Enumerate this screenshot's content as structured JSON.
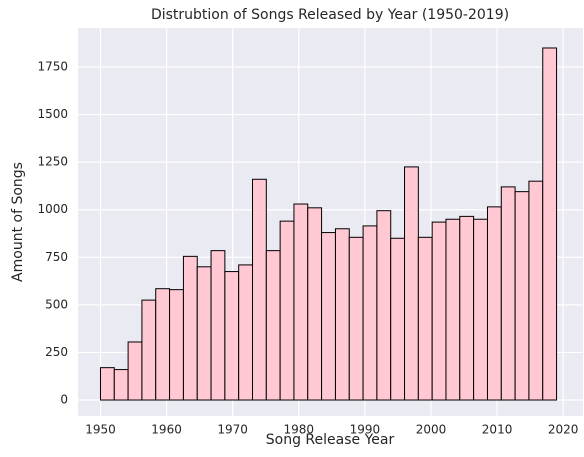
{
  "chart_data": {
    "type": "histogram",
    "title": "Distrubtion of Songs Released by Year (1950-2019)",
    "x_label": "Song Release Year",
    "y_label": "Amount of Songs",
    "bins": [
      1950,
      1952.09,
      1954.18,
      1956.27,
      1958.36,
      1960.45,
      1962.55,
      1964.64,
      1966.73,
      1968.82,
      1970.91,
      1973,
      1975.09,
      1977.18,
      1979.27,
      1981.36,
      1983.45,
      1985.55,
      1987.64,
      1989.73,
      1991.82,
      1993.91,
      1996,
      1998.09,
      2000.18,
      2002.27,
      2004.36,
      2006.45,
      2008.55,
      2010.64,
      2012.73,
      2014.82,
      2016.91,
      2019
    ],
    "values": [
      170,
      160,
      305,
      525,
      585,
      580,
      755,
      700,
      785,
      675,
      710,
      1160,
      785,
      940,
      1030,
      1010,
      880,
      900,
      855,
      915,
      995,
      850,
      1225,
      855,
      935,
      950,
      965,
      950,
      1015,
      1120,
      1095,
      1150,
      1850
    ],
    "color": "#ffc8d3",
    "edge_color": "#000000",
    "xlim": [
      1946.6,
      2023
    ],
    "xticks": [
      1950,
      1960,
      1970,
      1980,
      1990,
      2000,
      2010,
      2020
    ],
    "ylim": [
      -84,
      1955
    ],
    "yticks": [
      0,
      250,
      500,
      750,
      1000,
      1250,
      1500,
      1750
    ],
    "grid": true
  }
}
